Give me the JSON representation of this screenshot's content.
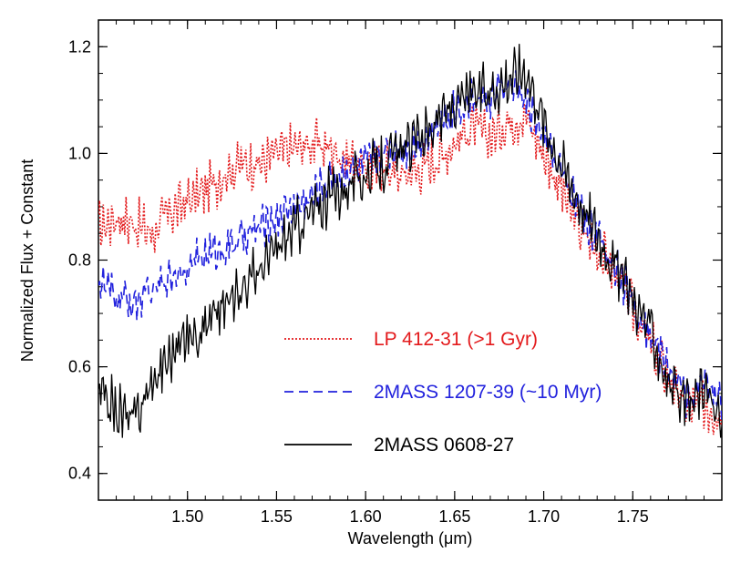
{
  "chart_data": {
    "type": "line",
    "title": "",
    "xlabel": "Wavelength (μm)",
    "ylabel": "Normalized Flux + Constant",
    "xlim": [
      1.45,
      1.8
    ],
    "ylim": [
      0.35,
      1.25
    ],
    "x_ticks": [
      "1.50",
      "1.55",
      "1.60",
      "1.65",
      "1.70",
      "1.75"
    ],
    "x_tick_values": [
      1.5,
      1.55,
      1.6,
      1.65,
      1.7,
      1.75
    ],
    "y_ticks": [
      "0.4",
      "0.6",
      "0.8",
      "1.0",
      "1.2"
    ],
    "y_tick_values": [
      0.4,
      0.6,
      0.8,
      1.0,
      1.2
    ],
    "grid": false,
    "legend_position": "lower-center",
    "series": [
      {
        "name": "LP 412-31 (>1 Gyr)",
        "color": "#e31a1c",
        "style": "dotted",
        "x": [
          1.45,
          1.46,
          1.47,
          1.48,
          1.49,
          1.5,
          1.51,
          1.52,
          1.53,
          1.54,
          1.55,
          1.56,
          1.57,
          1.58,
          1.59,
          1.6,
          1.61,
          1.62,
          1.63,
          1.64,
          1.65,
          1.66,
          1.67,
          1.68,
          1.69,
          1.7,
          1.71,
          1.72,
          1.73,
          1.74,
          1.75,
          1.76,
          1.77,
          1.78,
          1.79,
          1.8
        ],
        "y": [
          0.86,
          0.88,
          0.87,
          0.85,
          0.89,
          0.91,
          0.93,
          0.96,
          0.98,
          0.98,
          1.0,
          1.01,
          1.02,
          1.01,
          0.99,
          0.97,
          0.98,
          0.96,
          0.97,
          0.99,
          1.02,
          1.05,
          1.03,
          1.06,
          1.07,
          1.0,
          0.93,
          0.86,
          0.82,
          0.78,
          0.71,
          0.64,
          0.58,
          0.52,
          0.53,
          0.51
        ]
      },
      {
        "name": "2MASS 1207-39 (~10 Myr)",
        "color": "#2222dd",
        "style": "dashed",
        "x": [
          1.45,
          1.46,
          1.47,
          1.48,
          1.49,
          1.5,
          1.51,
          1.52,
          1.53,
          1.54,
          1.55,
          1.56,
          1.57,
          1.58,
          1.59,
          1.6,
          1.61,
          1.62,
          1.63,
          1.64,
          1.65,
          1.66,
          1.67,
          1.68,
          1.69,
          1.7,
          1.71,
          1.72,
          1.73,
          1.74,
          1.75,
          1.76,
          1.77,
          1.78,
          1.79,
          1.8
        ],
        "y": [
          0.76,
          0.73,
          0.72,
          0.74,
          0.77,
          0.79,
          0.81,
          0.82,
          0.84,
          0.86,
          0.88,
          0.9,
          0.92,
          0.95,
          0.97,
          0.98,
          1.0,
          1.01,
          1.02,
          1.05,
          1.08,
          1.1,
          1.1,
          1.13,
          1.1,
          1.03,
          0.96,
          0.9,
          0.84,
          0.79,
          0.72,
          0.66,
          0.6,
          0.54,
          0.57,
          0.53
        ]
      },
      {
        "name": "2MASS 0608-27",
        "color": "#000000",
        "style": "solid",
        "x": [
          1.45,
          1.46,
          1.47,
          1.48,
          1.49,
          1.5,
          1.51,
          1.52,
          1.53,
          1.54,
          1.55,
          1.56,
          1.57,
          1.58,
          1.59,
          1.6,
          1.61,
          1.62,
          1.63,
          1.64,
          1.65,
          1.66,
          1.67,
          1.68,
          1.69,
          1.7,
          1.71,
          1.72,
          1.73,
          1.74,
          1.75,
          1.76,
          1.77,
          1.78,
          1.79,
          1.8
        ],
        "y": [
          0.55,
          0.52,
          0.5,
          0.57,
          0.62,
          0.66,
          0.68,
          0.71,
          0.75,
          0.78,
          0.82,
          0.86,
          0.89,
          0.92,
          0.94,
          0.96,
          0.98,
          1.0,
          1.03,
          1.06,
          1.09,
          1.11,
          1.12,
          1.14,
          1.16,
          1.06,
          0.98,
          0.91,
          0.85,
          0.79,
          0.73,
          0.67,
          0.57,
          0.52,
          0.56,
          0.49
        ]
      }
    ]
  }
}
